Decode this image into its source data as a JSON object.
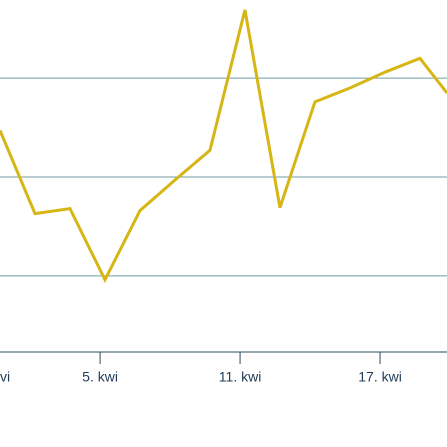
{
  "chart_data": {
    "type": "line",
    "x": [
      0.71,
      2.21,
      3.71,
      5.21,
      6.71,
      8.21,
      9.71,
      11.21,
      12.71,
      14.21,
      15.71,
      17.21,
      18.71,
      19.87
    ],
    "series": [
      {
        "color": "#d6b614",
        "values": [
          2.47,
          1.63,
          1.68,
          0.96,
          1.66,
          1.97,
          2.27,
          3.69,
          1.69,
          2.76,
          2.9,
          3.06,
          3.2,
          2.85
        ]
      }
    ],
    "xlim": [
      0.71,
      19.87
    ],
    "xticks": [
      {
        "value": -1,
        "label": "vi"
      },
      {
        "value": 5,
        "label": "5. kwi"
      },
      {
        "value": 11,
        "label": "11. kwi"
      },
      {
        "value": 17,
        "label": "17. kwi"
      }
    ],
    "ylim": [
      0.23,
      3.79
    ],
    "yticks": [
      1,
      2,
      3
    ],
    "grid": true
  }
}
